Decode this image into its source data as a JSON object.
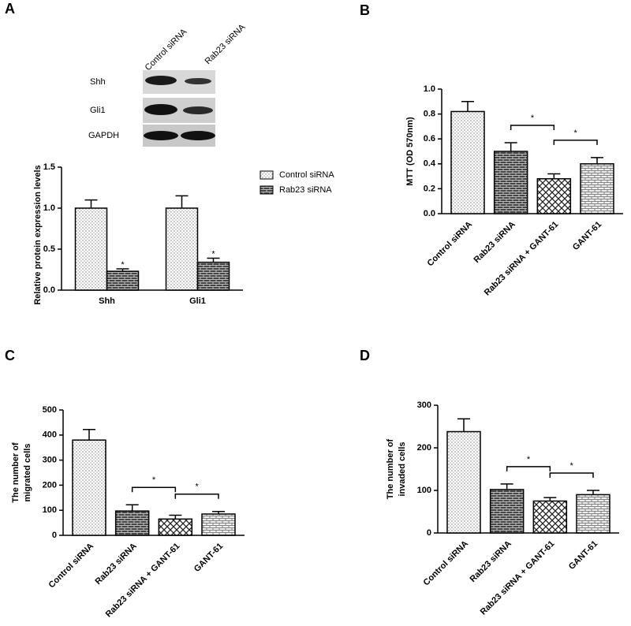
{
  "blot": {
    "lanes": [
      "Control siRNA",
      "Rab23 siRNA"
    ],
    "rows": [
      "Shh",
      "Gli1",
      "GAPDH"
    ]
  },
  "chart_data": [
    {
      "type": "grouped-bar",
      "panel": "A",
      "ylabel": "Relative protein  expression levels",
      "categories": [
        "Shh",
        "Gli1"
      ],
      "series": [
        {
          "name": "Control siRNA",
          "values": [
            1.0,
            1.0
          ],
          "errors": [
            0.1,
            0.15
          ]
        },
        {
          "name": "Rab23 siRNA",
          "values": [
            0.23,
            0.34
          ],
          "errors": [
            0.03,
            0.05
          ]
        }
      ],
      "annotations": [
        {
          "text": "*",
          "series": "Rab23 siRNA",
          "category": "Shh"
        },
        {
          "text": "*",
          "series": "Rab23 siRNA",
          "category": "Gli1"
        }
      ],
      "ylim": [
        0,
        1.5
      ],
      "yticks": [
        {
          "value": 0,
          "label": "0.0"
        },
        0.5,
        {
          "value": 1,
          "label": "1.0"
        },
        1.5
      ]
    },
    {
      "type": "bar",
      "panel": "B",
      "ylabel": "MTT (OD 570nm)",
      "categories": [
        "Control siRNA",
        "Rab23 siRNA",
        "Rab23 siRNA + GANT-61",
        "GANT-61"
      ],
      "values": [
        0.82,
        0.5,
        0.28,
        0.4
      ],
      "errors": [
        0.08,
        0.07,
        0.04,
        0.05
      ],
      "significance": [
        {
          "text": "*",
          "between": [
            "Rab23 siRNA",
            "Rab23 siRNA + GANT-61"
          ]
        },
        {
          "text": "*",
          "between": [
            "Rab23 siRNA + GANT-61",
            "GANT-61"
          ]
        }
      ],
      "ylim": [
        0,
        1.0
      ],
      "yticks": [
        {
          "value": 0,
          "label": "0.0"
        },
        0.2,
        0.4,
        0.6,
        0.8,
        {
          "value": 1,
          "label": "1.0"
        }
      ]
    },
    {
      "type": "bar",
      "panel": "C",
      "ylabel": [
        "The number of",
        "migrated cells"
      ],
      "categories": [
        "Control siRNA",
        "Rab23 siRNA",
        "Rab23 siRNA + GANT-61",
        "GANT-61"
      ],
      "values": [
        380,
        97,
        65,
        85
      ],
      "errors": [
        42,
        25,
        15,
        10
      ],
      "significance": [
        {
          "text": "*",
          "between": [
            "Rab23 siRNA",
            "Rab23 siRNA + GANT-61"
          ]
        },
        {
          "text": "*",
          "between": [
            "Rab23 siRNA + GANT-61",
            "GANT-61"
          ]
        }
      ],
      "ylim": [
        0,
        500
      ],
      "yticks": [
        0,
        100,
        200,
        300,
        400,
        500
      ]
    },
    {
      "type": "bar",
      "panel": "D",
      "ylabel": [
        "The number of",
        "invaded cells"
      ],
      "categories": [
        "Control siRNA",
        "Rab23 siRNA",
        "Rab23 siRNA + GANT-61",
        "GANT-61"
      ],
      "values": [
        238,
        102,
        75,
        90
      ],
      "errors": [
        30,
        13,
        8,
        10
      ],
      "significance": [
        {
          "text": "*",
          "between": [
            "Rab23 siRNA",
            "Rab23 siRNA + GANT-61"
          ]
        },
        {
          "text": "*",
          "between": [
            "Rab23 siRNA + GANT-61",
            "GANT-61"
          ]
        }
      ],
      "ylim": [
        0,
        300
      ],
      "yticks": [
        0,
        100,
        200,
        300
      ]
    }
  ]
}
